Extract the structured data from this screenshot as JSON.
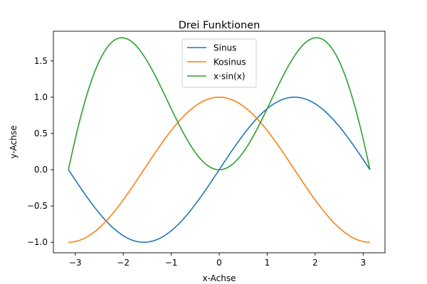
{
  "chart_data": {
    "type": "line",
    "title": "Drei Funktionen",
    "xlabel": "x-Achse",
    "ylabel": "y-Achse",
    "xlim": [
      -3.4558,
      3.4558
    ],
    "ylim": [
      -1.1448,
      1.9093
    ],
    "x_ticks": [
      -3,
      -2,
      -1,
      0,
      1,
      2,
      3
    ],
    "x_tick_labels": [
      "−3",
      "−2",
      "−1",
      "0",
      "1",
      "2",
      "3"
    ],
    "y_ticks": [
      -1.0,
      -0.5,
      0.0,
      0.5,
      1.0,
      1.5
    ],
    "y_tick_labels": [
      "−1.0",
      "−0.5",
      "0.0",
      "0.5",
      "1.0",
      "1.5"
    ],
    "grid": false,
    "legend_position": "top-center",
    "x": [
      -3.1416,
      -2.8274,
      -2.5133,
      -2.1991,
      -1.885,
      -1.5708,
      -1.2566,
      -0.9425,
      -0.6283,
      -0.3142,
      0.0,
      0.3142,
      0.6283,
      0.9425,
      1.2566,
      1.5708,
      1.885,
      2.1991,
      2.5133,
      2.8274,
      3.1416
    ],
    "series": [
      {
        "name": "Sinus",
        "color": "#1f77b4",
        "values": [
          0.0,
          -0.309,
          -0.5878,
          -0.809,
          -0.9511,
          -1.0,
          -0.9511,
          -0.809,
          -0.5878,
          -0.309,
          0.0,
          0.309,
          0.5878,
          0.809,
          0.9511,
          1.0,
          0.9511,
          0.809,
          0.5878,
          0.309,
          0.0
        ]
      },
      {
        "name": "Kosinus",
        "color": "#ff7f0e",
        "values": [
          -1.0,
          -0.9511,
          -0.809,
          -0.5878,
          -0.309,
          0.0,
          0.309,
          0.5878,
          0.809,
          0.9511,
          1.0,
          0.9511,
          0.809,
          0.5878,
          0.309,
          0.0,
          -0.309,
          -0.5878,
          -0.809,
          -0.9511,
          -1.0
        ]
      },
      {
        "name": "x·sin(x)",
        "color": "#2ca02c",
        "values": [
          0.0,
          0.8737,
          1.4773,
          1.7791,
          1.7927,
          1.5708,
          1.1951,
          0.7625,
          0.3693,
          0.0971,
          0.0,
          0.0971,
          0.3693,
          0.7625,
          1.1951,
          1.5708,
          1.7927,
          1.7791,
          1.4773,
          0.8737,
          0.0
        ]
      }
    ]
  }
}
